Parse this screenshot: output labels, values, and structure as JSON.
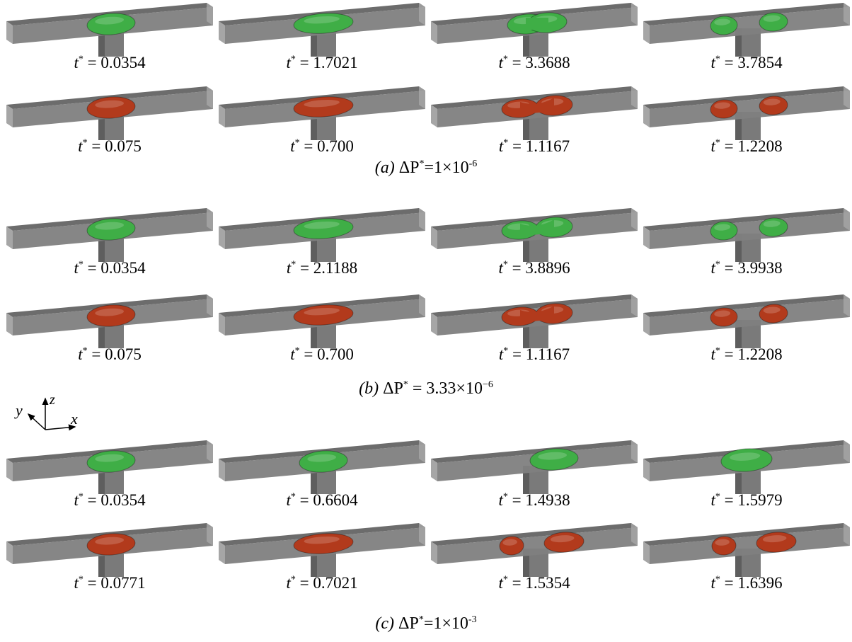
{
  "colors": {
    "water_phase": "#3fae46",
    "oil_phase": "#b23a1c",
    "channel_front": "#7f7f7f",
    "channel_top": "#6c6c6c",
    "channel_end": "#a6a6a6",
    "stem": "#7a7a7a"
  },
  "groups": [
    {
      "label": "(a)",
      "symbol": "ΔP",
      "sup": "*",
      "eq": "=1×10",
      "exp": "-6",
      "rows": [
        {
          "color": "green",
          "panels": [
            {
              "t": "0.0354",
              "shape": "single"
            },
            {
              "t": "1.7021",
              "shape": "elongated"
            },
            {
              "t": "3.3688",
              "shape": "necking-slight"
            },
            {
              "t": "3.7854",
              "shape": "split"
            }
          ]
        },
        {
          "color": "red",
          "panels": [
            {
              "t": "0.075",
              "shape": "single"
            },
            {
              "t": "0.700",
              "shape": "elongated"
            },
            {
              "t": "1.1167",
              "shape": "necking"
            },
            {
              "t": "1.2208",
              "shape": "split"
            }
          ]
        }
      ]
    },
    {
      "label": "(b)",
      "symbol": "ΔP",
      "sup": "*",
      "eq": " = 3.33×10",
      "exp": "−6",
      "rows": [
        {
          "color": "green",
          "panels": [
            {
              "t": "0.0354",
              "shape": "single"
            },
            {
              "t": "2.1188",
              "shape": "elongated"
            },
            {
              "t": "3.8896",
              "shape": "necking"
            },
            {
              "t": "3.9938",
              "shape": "split"
            }
          ]
        },
        {
          "color": "red",
          "panels": [
            {
              "t": "0.075",
              "shape": "single"
            },
            {
              "t": "0.700",
              "shape": "elongated"
            },
            {
              "t": "1.1167",
              "shape": "necking"
            },
            {
              "t": "1.2208",
              "shape": "split"
            }
          ]
        }
      ]
    },
    {
      "label": "(c)",
      "symbol": "ΔP",
      "sup": "*",
      "eq": "=1×10",
      "exp": "-3",
      "rows": [
        {
          "color": "green",
          "panels": [
            {
              "t": "0.0354",
              "shape": "single"
            },
            {
              "t": "0.6604",
              "shape": "single"
            },
            {
              "t": "1.4938",
              "shape": "shifted-right"
            },
            {
              "t": "1.5979",
              "shape": "shifted-right-far"
            }
          ]
        },
        {
          "color": "red",
          "panels": [
            {
              "t": "0.0771",
              "shape": "single"
            },
            {
              "t": "0.7021",
              "shape": "elongated"
            },
            {
              "t": "1.5354",
              "shape": "split-asymmetric"
            },
            {
              "t": "1.6396",
              "shape": "split-asymmetric"
            }
          ]
        }
      ]
    }
  ],
  "axes": {
    "x": "x",
    "y": "y",
    "z": "z"
  },
  "caption_prefix": "t",
  "caption_sup": "*",
  "caption_eq": " = "
}
